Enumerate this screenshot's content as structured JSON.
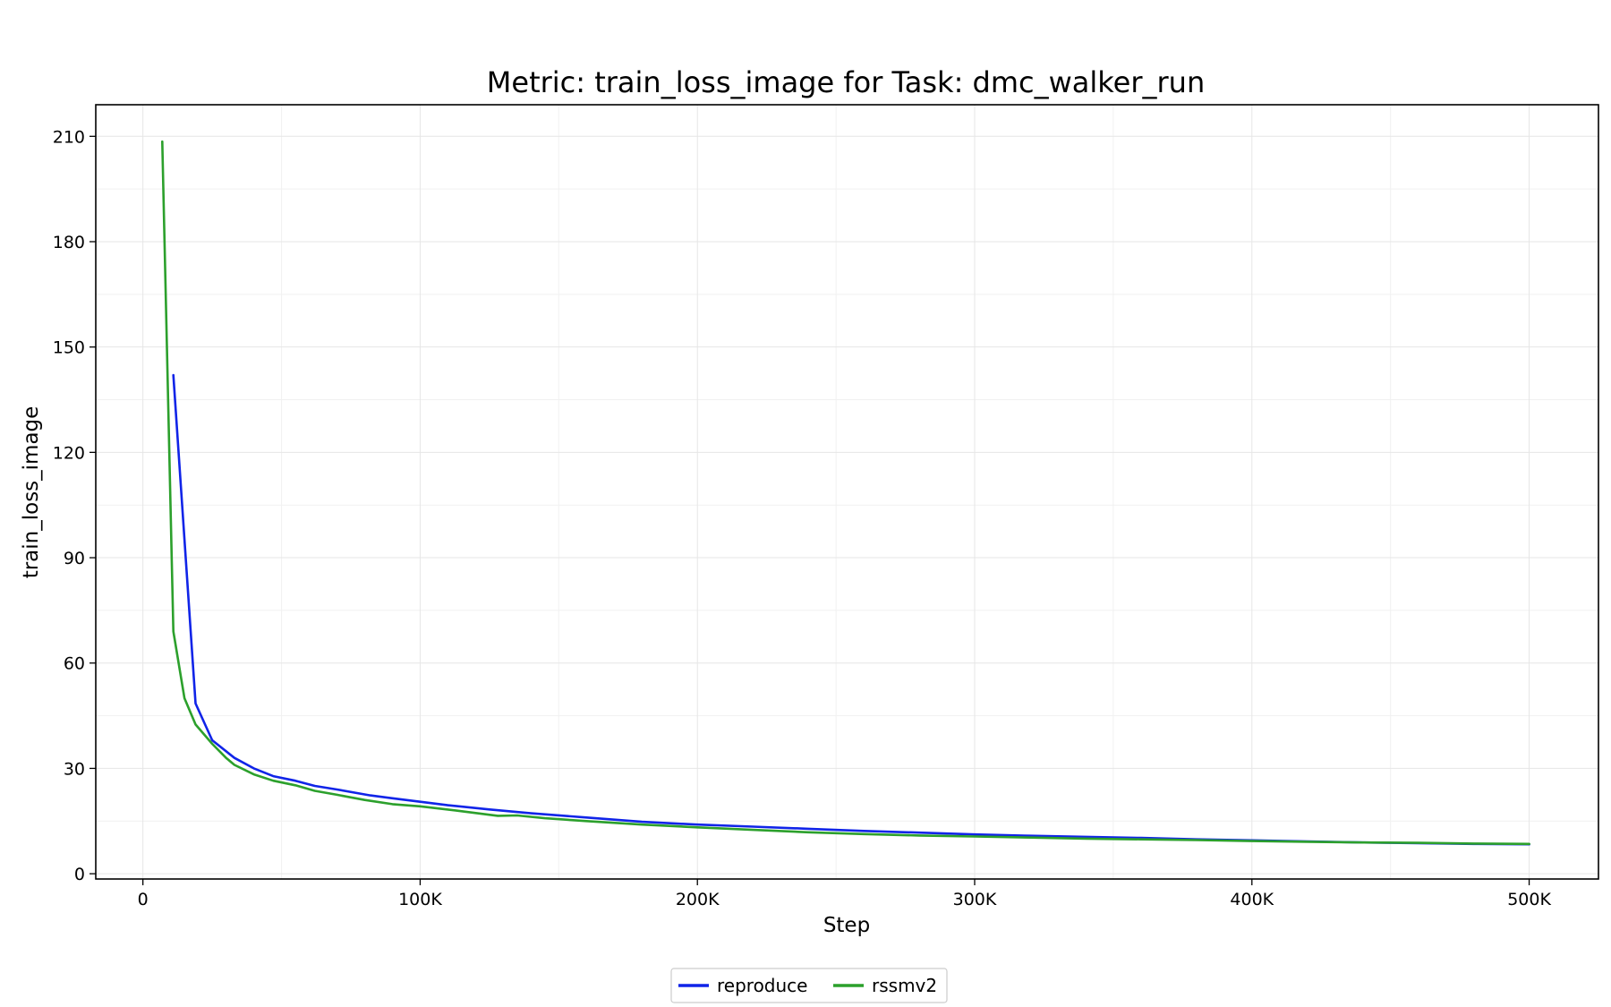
{
  "chart_data": {
    "type": "line",
    "title": "Metric: train_loss_image for Task: dmc_walker_run",
    "xlabel": "Step",
    "ylabel": "train_loss_image",
    "xlim": [
      -17000,
      525000
    ],
    "ylim": [
      -1.5,
      219
    ],
    "xticks": [
      {
        "value": 0,
        "label": "0"
      },
      {
        "value": 100000,
        "label": "100K"
      },
      {
        "value": 200000,
        "label": "200K"
      },
      {
        "value": 300000,
        "label": "300K"
      },
      {
        "value": 400000,
        "label": "400K"
      },
      {
        "value": 500000,
        "label": "500K"
      }
    ],
    "yticks": [
      {
        "value": 0,
        "label": "0"
      },
      {
        "value": 30,
        "label": "30"
      },
      {
        "value": 60,
        "label": "60"
      },
      {
        "value": 90,
        "label": "90"
      },
      {
        "value": 120,
        "label": "120"
      },
      {
        "value": 150,
        "label": "150"
      },
      {
        "value": 180,
        "label": "180"
      },
      {
        "value": 210,
        "label": "210"
      }
    ],
    "grid": true,
    "minor_grid": true,
    "legend_position": "bottom-center",
    "series": [
      {
        "name": "reproduce",
        "color": "#1024e8",
        "x": [
          11000,
          19000,
          25000,
          33000,
          40000,
          47000,
          55000,
          62000,
          70000,
          82000,
          90000,
          100000,
          110000,
          125000,
          140000,
          160000,
          180000,
          200000,
          220000,
          240000,
          260000,
          280000,
          300000,
          320000,
          340000,
          360000,
          380000,
          400000,
          420000,
          440000,
          460000,
          480000,
          500000
        ],
        "y": [
          142,
          48.5,
          38,
          33,
          30,
          27.8,
          26.5,
          25,
          24,
          22.3,
          21.5,
          20.5,
          19.5,
          18.3,
          17.2,
          16,
          14.8,
          14,
          13.4,
          12.8,
          12.2,
          11.7,
          11.2,
          10.8,
          10.5,
          10.2,
          9.8,
          9.5,
          9.2,
          8.9,
          8.7,
          8.5,
          8.4
        ]
      },
      {
        "name": "rssmv2",
        "color": "#2ca02c",
        "x": [
          7000,
          11000,
          15000,
          19000,
          25000,
          30000,
          33000,
          40000,
          47000,
          55000,
          62000,
          70000,
          80000,
          90000,
          100000,
          115000,
          128000,
          135000,
          145000,
          160000,
          180000,
          200000,
          220000,
          240000,
          260000,
          280000,
          300000,
          320000,
          340000,
          360000,
          380000,
          400000,
          420000,
          440000,
          460000,
          480000,
          500000
        ],
        "y": [
          208.5,
          69,
          50,
          42.5,
          37,
          33,
          31,
          28.3,
          26.5,
          25.2,
          23.6,
          22.5,
          21,
          19.8,
          19.2,
          17.8,
          16.5,
          16.6,
          15.8,
          15,
          14,
          13.2,
          12.5,
          11.8,
          11.3,
          10.9,
          10.6,
          10.3,
          10,
          9.8,
          9.6,
          9.3,
          9.1,
          8.9,
          8.8,
          8.6,
          8.5
        ]
      }
    ]
  }
}
